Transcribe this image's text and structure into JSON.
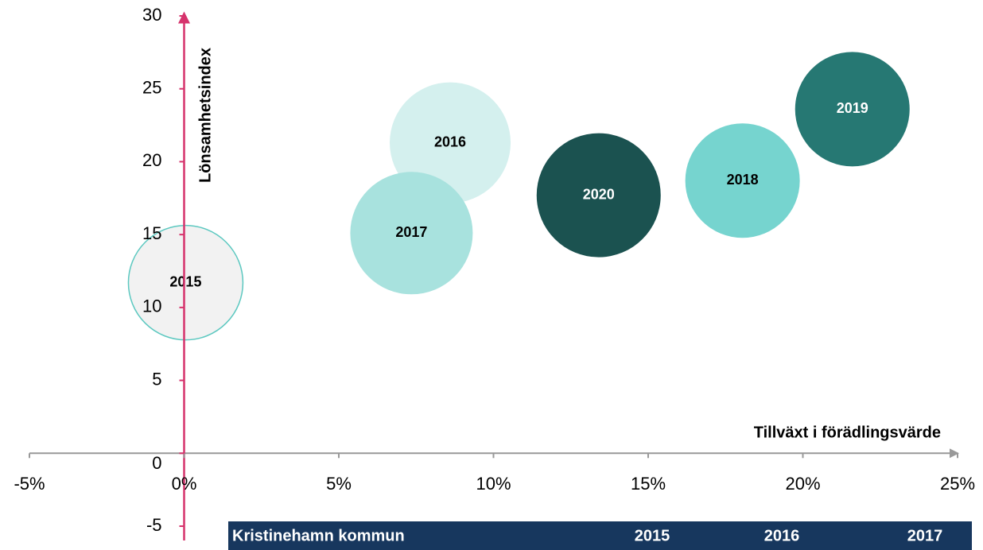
{
  "chart_data": {
    "type": "bubble",
    "x_label": "Tillväxt i förädlingsvärde",
    "y_label": "Lönsamhetsindex",
    "xlim": [
      -5,
      25
    ],
    "xticks": [
      {
        "value": -5,
        "label": "-5%"
      },
      {
        "value": 0,
        "label": "0%"
      },
      {
        "value": 5,
        "label": "5%"
      },
      {
        "value": 10,
        "label": "10%"
      },
      {
        "value": 15,
        "label": "15%"
      },
      {
        "value": 20,
        "label": "20%"
      },
      {
        "value": 25,
        "label": "25%"
      }
    ],
    "ylim": [
      -5,
      30
    ],
    "yticks": [
      -5,
      0,
      5,
      10,
      15,
      20,
      25,
      30
    ],
    "series": [
      {
        "name": "2015",
        "x": 0.05,
        "y": 11.7,
        "size": 72,
        "color": "#f2f2f2",
        "stroke": "#5cc8c0",
        "text_color": "#000000"
      },
      {
        "name": "2016",
        "x": 8.6,
        "y": 21.3,
        "size": 76,
        "color": "#d4f0ee",
        "text_color": "#000000"
      },
      {
        "name": "2017",
        "x": 7.35,
        "y": 15.1,
        "size": 77,
        "color": "#a8e2de",
        "text_color": "#000000"
      },
      {
        "name": "2020",
        "x": 13.4,
        "y": 17.7,
        "size": 78,
        "color": "#1b5250",
        "text_color": "#ffffff"
      },
      {
        "name": "2018",
        "x": 18.05,
        "y": 18.7,
        "size": 72,
        "color": "#76d4cf",
        "text_color": "#000000"
      },
      {
        "name": "2019",
        "x": 21.6,
        "y": 23.6,
        "size": 72,
        "color": "#267873",
        "text_color": "#ffffff"
      }
    ]
  },
  "table": {
    "header": [
      "Kristinehamn kommun",
      "2015",
      "2016",
      "2017"
    ]
  }
}
